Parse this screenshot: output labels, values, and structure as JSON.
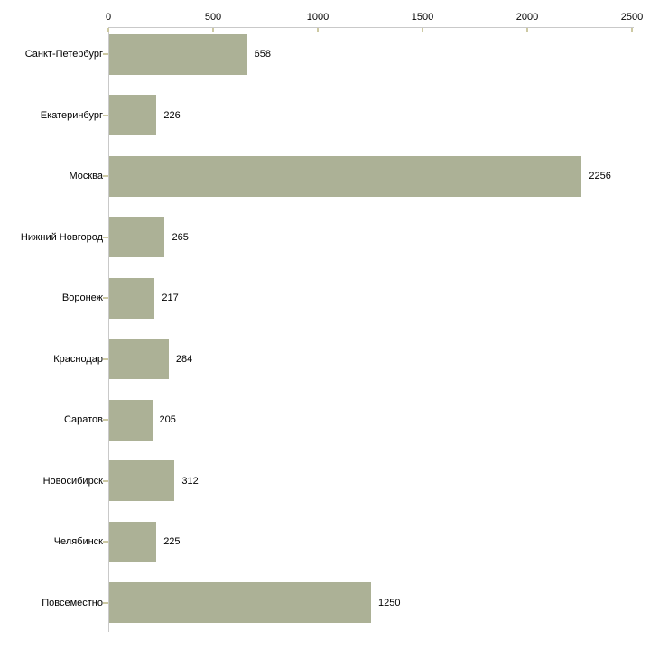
{
  "chart_data": {
    "type": "bar",
    "orientation": "horizontal",
    "title": "",
    "categories": [
      "Санкт-Петербург",
      "Екатеринбург",
      "Москва",
      "Нижний Новгород",
      "Воронеж",
      "Краснодар",
      "Саратов",
      "Новосибирск",
      "Челябинск",
      "Повсеместно"
    ],
    "values": [
      658,
      226,
      2256,
      265,
      217,
      284,
      205,
      312,
      225,
      1250
    ],
    "value_labels": [
      "658",
      "226",
      "2256",
      "265",
      "217",
      "284",
      "205",
      "312",
      "225",
      "1250"
    ],
    "xlabel": "",
    "ylabel": "",
    "xlim": [
      0,
      2500
    ],
    "xticks": [
      0,
      500,
      1000,
      1500,
      2000,
      2500
    ],
    "xtick_labels": [
      "0",
      "500",
      "1000",
      "1500",
      "2000",
      "2500"
    ],
    "grid": false,
    "legend": false,
    "x_axis_position": "top",
    "bar_color": "#ACB196",
    "axis_color": "#C9C9C9",
    "tick_mark_color": "#CDC9A3",
    "label_color": "#000000",
    "background_color": "#FFFFFF"
  }
}
